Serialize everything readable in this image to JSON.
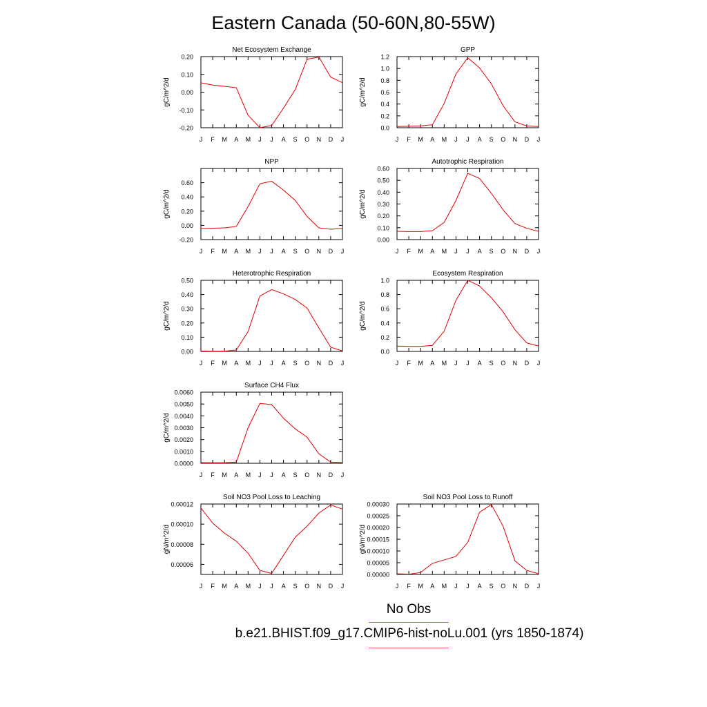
{
  "title": "Eastern Canada (50-60N,80-55W)",
  "legend": {
    "obs_label": "No Obs",
    "obs_color": "#8080ff",
    "case_label": "b.e21.BHIST.f09_g17.CMIP6-hist-noLu.001 (yrs 1850-1874)",
    "case_color": "#ff6060"
  },
  "chart_data": [
    {
      "type": "line",
      "title": "Net Ecosystem Exchange",
      "ylabel": "gC/m^2/d",
      "categories": [
        "J",
        "F",
        "M",
        "A",
        "M",
        "J",
        "J",
        "A",
        "S",
        "O",
        "N",
        "D",
        "J"
      ],
      "ylim": [
        -0.2,
        0.2
      ],
      "yticks": [
        "-0.20",
        "-0.10",
        "0.00",
        "0.10",
        "0.20"
      ],
      "series": [
        {
          "values": [
            0.053,
            0.04,
            0.033,
            0.025,
            -0.13,
            -0.2,
            -0.187,
            -0.09,
            0.015,
            0.185,
            0.198,
            0.085,
            0.053
          ],
          "color": "#e00000"
        }
      ]
    },
    {
      "type": "line",
      "title": "GPP",
      "ylabel": "gC/m^2/d",
      "categories": [
        "J",
        "F",
        "M",
        "A",
        "M",
        "J",
        "J",
        "A",
        "S",
        "O",
        "N",
        "D",
        "J"
      ],
      "ylim": [
        0.0,
        1.2
      ],
      "yticks": [
        "0.0",
        "0.2",
        "0.4",
        "0.6",
        "0.8",
        "1.0",
        "1.2"
      ],
      "series": [
        {
          "values": [
            0.02,
            0.025,
            0.03,
            0.05,
            0.41,
            0.91,
            1.18,
            1.01,
            0.74,
            0.37,
            0.1,
            0.03,
            0.02
          ],
          "color": "#e00000"
        }
      ]
    },
    {
      "type": "line",
      "title": "NPP",
      "ylabel": "gC/m^2/d",
      "categories": [
        "J",
        "F",
        "M",
        "A",
        "M",
        "J",
        "J",
        "A",
        "S",
        "O",
        "N",
        "D",
        "J"
      ],
      "ylim": [
        -0.2,
        0.8
      ],
      "yticks": [
        "-0.20",
        "0.00",
        "0.20",
        "0.40",
        "0.60"
      ],
      "series": [
        {
          "values": [
            -0.045,
            -0.04,
            -0.035,
            -0.015,
            0.265,
            0.585,
            0.62,
            0.495,
            0.35,
            0.125,
            -0.035,
            -0.055,
            -0.045
          ],
          "color": "#e00000"
        }
      ]
    },
    {
      "type": "line",
      "title": "Autotrophic Respiration",
      "ylabel": "gC/m^2/d",
      "categories": [
        "J",
        "F",
        "M",
        "A",
        "M",
        "J",
        "J",
        "A",
        "S",
        "O",
        "N",
        "D",
        "J"
      ],
      "ylim": [
        0.0,
        0.6
      ],
      "yticks": [
        "0.00",
        "0.10",
        "0.20",
        "0.30",
        "0.40",
        "0.50",
        "0.60"
      ],
      "series": [
        {
          "values": [
            0.07,
            0.068,
            0.068,
            0.075,
            0.145,
            0.33,
            0.56,
            0.515,
            0.39,
            0.25,
            0.135,
            0.095,
            0.07
          ],
          "color": "#e00000"
        }
      ]
    },
    {
      "type": "line",
      "title": "Heterotrophic Respiration",
      "ylabel": "gC/m^2/d",
      "categories": [
        "J",
        "F",
        "M",
        "A",
        "M",
        "J",
        "J",
        "A",
        "S",
        "O",
        "N",
        "D",
        "J"
      ],
      "ylim": [
        0.0,
        0.5
      ],
      "yticks": [
        "0.00",
        "0.10",
        "0.20",
        "0.30",
        "0.40",
        "0.50"
      ],
      "series": [
        {
          "values": [
            0.003,
            0.002,
            0.002,
            0.01,
            0.14,
            0.39,
            0.435,
            0.405,
            0.365,
            0.305,
            0.165,
            0.03,
            0.003
          ],
          "color": "#e00000"
        }
      ]
    },
    {
      "type": "line",
      "title": "Ecosystem Respiration",
      "ylabel": "gC/m^2/d",
      "categories": [
        "J",
        "F",
        "M",
        "A",
        "M",
        "J",
        "J",
        "A",
        "S",
        "O",
        "N",
        "D",
        "J"
      ],
      "ylim": [
        0.0,
        1.0
      ],
      "yticks": [
        "0.0",
        "0.2",
        "0.4",
        "0.6",
        "0.8",
        "1.0"
      ],
      "series": [
        {
          "values": [
            0.075,
            0.07,
            0.07,
            0.085,
            0.285,
            0.72,
            1.0,
            0.92,
            0.755,
            0.555,
            0.305,
            0.12,
            0.075
          ],
          "color": "#e00000"
        }
      ]
    },
    {
      "type": "line",
      "title": "Surface CH4 Flux",
      "ylabel": "gC/m^2/d",
      "categories": [
        "J",
        "F",
        "M",
        "A",
        "M",
        "J",
        "J",
        "A",
        "S",
        "O",
        "N",
        "D",
        "J"
      ],
      "ylim": [
        0.0,
        0.006
      ],
      "yticks": [
        "0.0000",
        "0.0010",
        "0.0020",
        "0.0030",
        "0.0040",
        "0.0050",
        "0.0060"
      ],
      "series": [
        {
          "values": [
            5e-05,
            4e-05,
            4e-05,
            0.0001,
            0.003,
            0.00505,
            0.00495,
            0.0038,
            0.0029,
            0.0022,
            0.0008,
            0.0001,
            5e-05
          ],
          "color": "#e00000"
        }
      ]
    },
    {
      "type": "line",
      "title": "Soil NO3 Pool Loss to Leaching",
      "ylabel": "gN/m^2/d",
      "categories": [
        "J",
        "F",
        "M",
        "A",
        "M",
        "J",
        "J",
        "A",
        "S",
        "O",
        "N",
        "D",
        "J"
      ],
      "ylim": [
        5e-05,
        0.00012
      ],
      "yticks": [
        "0.00006",
        "0.00008",
        "0.00010",
        "0.00012"
      ],
      "series": [
        {
          "values": [
            0.000116,
            0.000101,
            9.1e-05,
            8.3e-05,
            7.1e-05,
            5.4e-05,
            5.1e-05,
            6.9e-05,
            8.7e-05,
            9.8e-05,
            0.000111,
            0.000119,
            0.000115
          ],
          "color": "#e00000"
        }
      ]
    },
    {
      "type": "line",
      "title": "Soil NO3 Pool Loss to Runoff",
      "ylabel": "gN/m^2/d",
      "categories": [
        "J",
        "F",
        "M",
        "A",
        "M",
        "J",
        "J",
        "A",
        "S",
        "O",
        "N",
        "D",
        "J"
      ],
      "ylim": [
        0.0,
        0.0003
      ],
      "yticks": [
        "0.00000",
        "0.00005",
        "0.00010",
        "0.00015",
        "0.00020",
        "0.00025",
        "0.00030"
      ],
      "series": [
        {
          "values": [
            3e-06,
            1e-06,
            8e-06,
            4.7e-05,
            6.2e-05,
            7.7e-05,
            0.000137,
            0.000265,
            0.000298,
            0.000205,
            5.8e-05,
            1.7e-05,
            3e-06
          ],
          "color": "#e00000"
        }
      ]
    }
  ]
}
